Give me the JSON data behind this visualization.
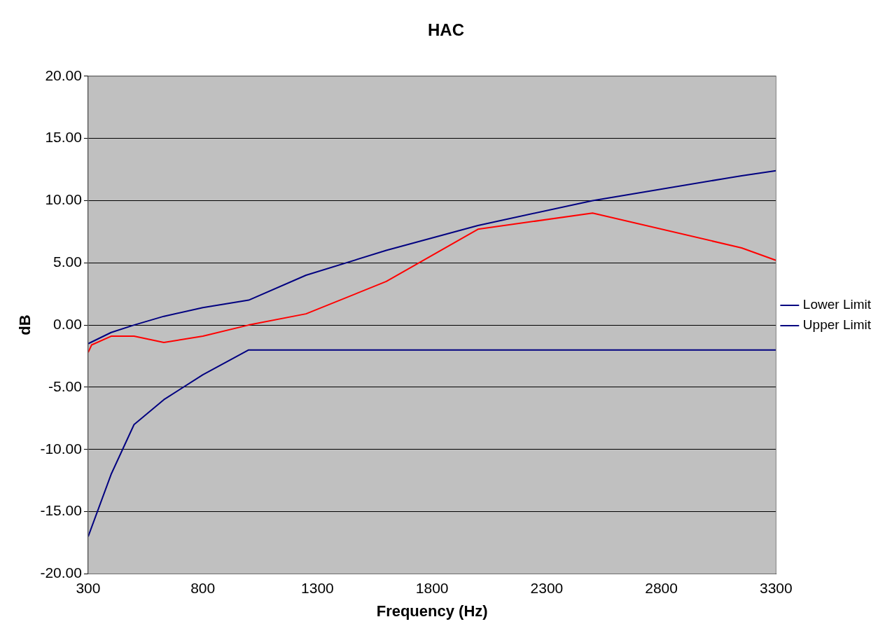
{
  "chart_data": {
    "type": "line",
    "title": "HAC",
    "xlabel": "Frequency (Hz)",
    "ylabel": "dB",
    "xlim": [
      300,
      3300
    ],
    "xticks": [
      300,
      800,
      1300,
      1800,
      2300,
      2800,
      3300
    ],
    "ylim": [
      -20,
      20
    ],
    "yticks": [
      {
        "value": -20,
        "label": "-20.00"
      },
      {
        "value": -15,
        "label": "-15.00"
      },
      {
        "value": -10,
        "label": "-10.00"
      },
      {
        "value": -5,
        "label": "-5.00"
      },
      {
        "value": 0,
        "label": "0.00"
      },
      {
        "value": 5,
        "label": "5.00"
      },
      {
        "value": 10,
        "label": "10.00"
      },
      {
        "value": 15,
        "label": "15.00"
      },
      {
        "value": 20,
        "label": "20.00"
      }
    ],
    "grid": "y",
    "legend": "right",
    "marker": "none",
    "line_style": "solid",
    "series": [
      {
        "name": "Lower Limit",
        "color": "#000080",
        "x": [
          300,
          400,
          500,
          630,
          800,
          1000,
          1250,
          1600,
          2000,
          2500,
          3150,
          3300
        ],
        "values": [
          -17,
          -12,
          -8,
          -6,
          -4,
          -2,
          -2,
          -2,
          -2,
          -2,
          -2,
          -2
        ]
      },
      {
        "name": "Upper Limit",
        "color": "#000080",
        "x": [
          300,
          400,
          500,
          630,
          800,
          1000,
          1250,
          1600,
          2000,
          2500,
          3150,
          3300
        ],
        "values": [
          -1.5,
          -0.6,
          0,
          0.7,
          1.4,
          2,
          4,
          6,
          8,
          10,
          12,
          12.4
        ]
      },
      {
        "color": "#ff0000",
        "x": [
          300,
          315,
          400,
          500,
          630,
          800,
          1000,
          1250,
          1600,
          2000,
          2500,
          3150,
          3300
        ],
        "values": [
          -2.2,
          -1.6,
          -0.9,
          -0.9,
          -1.4,
          -0.9,
          0,
          0.9,
          3.5,
          7.7,
          9,
          6.2,
          5.2
        ]
      }
    ]
  }
}
